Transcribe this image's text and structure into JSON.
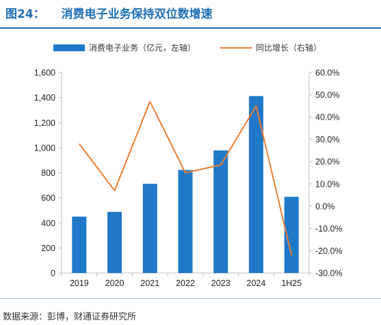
{
  "header": {
    "figure_number": "图24：",
    "title": "消费电子业务保持双位数增速"
  },
  "legend": {
    "bar_label": "消费电子业务（亿元，左轴）",
    "line_label": "同比增长（右轴）"
  },
  "source": "数据来源：彭博，财通证券研究所",
  "colors": {
    "bar": "#1f78c8",
    "line": "#ed7d31",
    "title": "#1f6fb5"
  },
  "chart_data": {
    "type": "bar+line",
    "categories": [
      "2019",
      "2020",
      "2021",
      "2022",
      "2023",
      "2024",
      "1H25"
    ],
    "series": [
      {
        "name": "消费电子业务（亿元，左轴）",
        "type": "bar",
        "axis": "left",
        "values": [
          450,
          488,
          712,
          822,
          978,
          1412,
          608
        ]
      },
      {
        "name": "同比增长（右轴）",
        "type": "line",
        "axis": "right",
        "values": [
          28.0,
          7.0,
          47.0,
          15.0,
          18.5,
          45.0,
          -22.0
        ]
      }
    ],
    "y_left": {
      "ylim": [
        0,
        1600
      ],
      "ticks": [
        0,
        200,
        400,
        600,
        800,
        1000,
        1200,
        1400,
        1600
      ],
      "tick_labels": [
        "0",
        "200",
        "400",
        "600",
        "800",
        "1,000",
        "1,200",
        "1,400",
        "1,600"
      ]
    },
    "y_right": {
      "ylim": [
        -30,
        60
      ],
      "ticks": [
        -30,
        -20,
        -10,
        0,
        10,
        20,
        30,
        40,
        50,
        60
      ],
      "tick_labels": [
        "-30.0%",
        "-20.0%",
        "-10.0%",
        "0.0%",
        "10.0%",
        "20.0%",
        "30.0%",
        "40.0%",
        "50.0%",
        "60.0%"
      ]
    },
    "grid": false,
    "legend_position": "top"
  }
}
